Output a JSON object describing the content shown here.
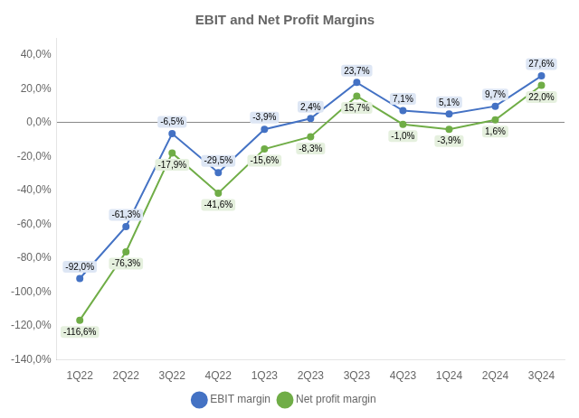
{
  "chart_data": {
    "type": "line",
    "title": "EBIT and Net Profit Margins",
    "categories": [
      "1Q22",
      "2Q22",
      "3Q22",
      "4Q22",
      "1Q23",
      "2Q23",
      "3Q23",
      "4Q23",
      "1Q24",
      "2Q24",
      "3Q24"
    ],
    "series": [
      {
        "name": "EBIT margin",
        "color": "#4472C4",
        "marker": "circle",
        "values": [
          -92.0,
          -61.3,
          -6.5,
          -29.5,
          -3.9,
          2.4,
          23.7,
          7.1,
          5.1,
          9.7,
          27.6
        ],
        "value_labels": [
          "-92,0%",
          "-61,3%",
          "-6,5%",
          "-29,5%",
          "-3,9%",
          "2,4%",
          "23,7%",
          "7,1%",
          "5,1%",
          "9,7%",
          "27,6%"
        ]
      },
      {
        "name": "Net profit margin",
        "color": "#70AD47",
        "marker": "circle",
        "values": [
          -116.6,
          -76.3,
          -17.9,
          -41.6,
          -15.6,
          -8.3,
          15.7,
          -1.0,
          -3.9,
          1.6,
          22.0
        ],
        "value_labels": [
          "-116,6%",
          "-76,3%",
          "-17,9%",
          "-41,6%",
          "-15,6%",
          "-8,3%",
          "15,7%",
          "-1,0%",
          "-3,9%",
          "1,6%",
          "22,0%"
        ]
      }
    ],
    "ylim": [
      -140,
      50
    ],
    "yticks": [
      {
        "value": -140,
        "label": "-140,0%"
      },
      {
        "value": -120,
        "label": "-120,0%"
      },
      {
        "value": -100,
        "label": "-100,0%"
      },
      {
        "value": -80,
        "label": "-80,0%"
      },
      {
        "value": -60,
        "label": "-60,0%"
      },
      {
        "value": -40,
        "label": "-40,0%"
      },
      {
        "value": -20,
        "label": "-20,0%"
      },
      {
        "value": 0,
        "label": "0,0%"
      },
      {
        "value": 20,
        "label": "20,0%"
      },
      {
        "value": 40,
        "label": "40,0%"
      }
    ],
    "grid": false,
    "legend": "bottom",
    "data_labels": true
  }
}
